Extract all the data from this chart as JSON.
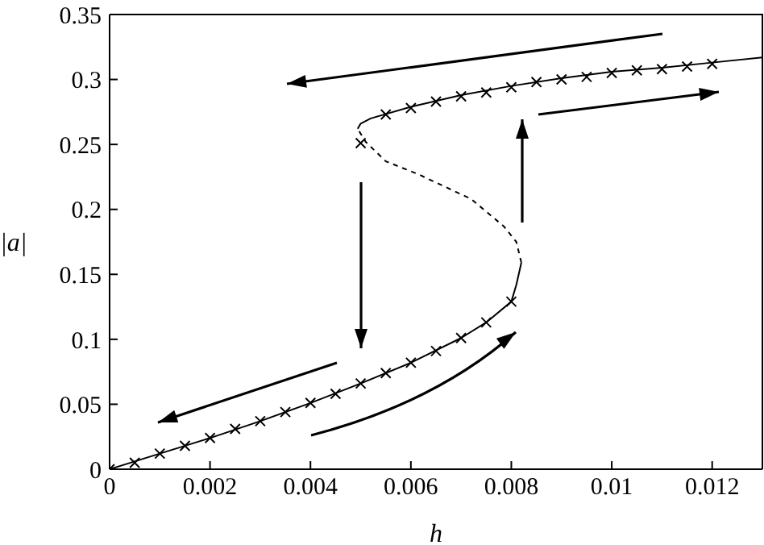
{
  "chart_data": {
    "type": "line",
    "xlabel": "h",
    "ylabel": "|a|",
    "xlim": [
      0,
      0.013
    ],
    "ylim": [
      0,
      0.35
    ],
    "xticks": [
      0,
      0.002,
      0.004,
      0.006,
      0.008,
      0.01,
      0.012
    ],
    "yticks": [
      0,
      0.05,
      0.1,
      0.15,
      0.2,
      0.25,
      0.3,
      0.35
    ],
    "series": [
      {
        "color": "#000000",
        "line_style": "solid",
        "x": [
          0,
          0.001,
          0.002,
          0.003,
          0.004,
          0.005,
          0.006,
          0.007,
          0.0075,
          0.008,
          0.0081,
          0.0082
        ],
        "values": [
          0,
          0.012,
          0.024,
          0.037,
          0.051,
          0.066,
          0.082,
          0.101,
          0.113,
          0.129,
          0.142,
          0.159
        ]
      },
      {
        "color": "#000000",
        "line_style": "dashed",
        "x": [
          0.0082,
          0.0081,
          0.00785,
          0.0072,
          0.00615,
          0.0055,
          0.0051,
          0.00494
        ],
        "values": [
          0.159,
          0.175,
          0.187,
          0.208,
          0.227,
          0.237,
          0.252,
          0.262
        ]
      },
      {
        "color": "#000000",
        "line_style": "solid",
        "x": [
          0.00494,
          0.005,
          0.0052,
          0.006,
          0.007,
          0.008,
          0.009,
          0.01,
          0.011,
          0.012,
          0.013
        ],
        "values": [
          0.262,
          0.266,
          0.27,
          0.279,
          0.288,
          0.295,
          0.301,
          0.306,
          0.309,
          0.313,
          0.317
        ]
      },
      {
        "type": "scatter",
        "color": "#000000",
        "marker": "cross",
        "x": [
          0,
          0.0005,
          0.001,
          0.0015,
          0.002,
          0.0025,
          0.003,
          0.0035,
          0.004,
          0.0045,
          0.005,
          0.0055,
          0.006,
          0.0065,
          0.007,
          0.0075,
          0.008
        ],
        "values": [
          0,
          0.005,
          0.012,
          0.018,
          0.024,
          0.031,
          0.037,
          0.044,
          0.051,
          0.058,
          0.066,
          0.074,
          0.082,
          0.091,
          0.101,
          0.113,
          0.129
        ]
      },
      {
        "type": "scatter",
        "color": "#000000",
        "marker": "cross",
        "x": [
          0.005,
          0.0055,
          0.006,
          0.0065,
          0.007,
          0.0075,
          0.008,
          0.0085,
          0.009,
          0.0095,
          0.01,
          0.0105,
          0.011,
          0.0115,
          0.012
        ],
        "values": [
          0.251,
          0.273,
          0.278,
          0.283,
          0.287,
          0.29,
          0.294,
          0.298,
          0.3,
          0.302,
          0.305,
          0.307,
          0.308,
          0.31,
          0.312
        ]
      }
    ]
  }
}
